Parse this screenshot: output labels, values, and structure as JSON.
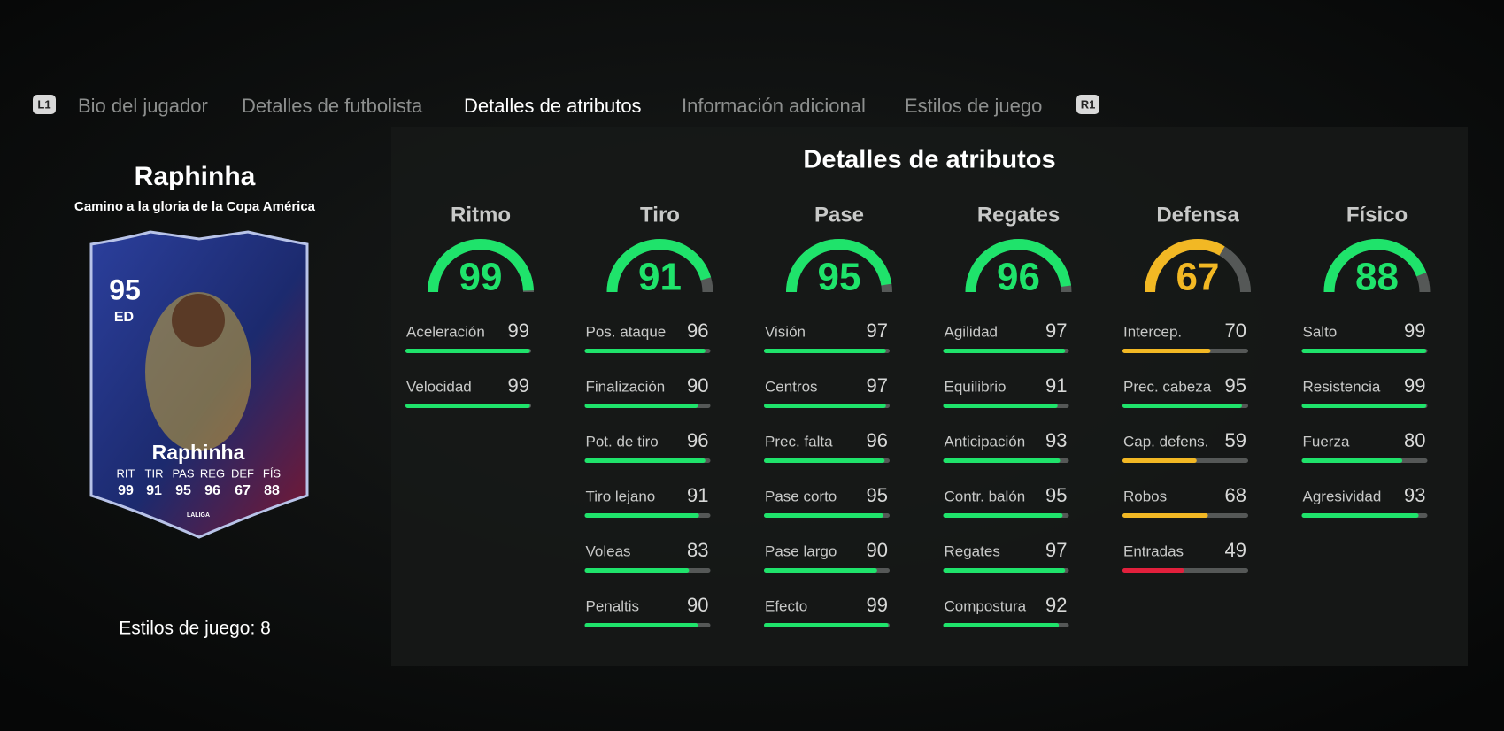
{
  "tabs": {
    "left_button": "L1",
    "right_button": "R1",
    "active": 2,
    "items": [
      "Bio del jugador",
      "Detalles de futbolista",
      "Detalles de atributos",
      "Información adicional",
      "Estilos de juego"
    ]
  },
  "player": {
    "name": "Raphinha",
    "subtitle": "Camino a la gloria de la Copa América",
    "card": {
      "rating": 95,
      "position": "ED",
      "name": "Raphinha",
      "stat_labels": [
        "RIT",
        "TIR",
        "PAS",
        "REG",
        "DEF",
        "FÍS"
      ],
      "stat_values": [
        99,
        91,
        95,
        96,
        67,
        88
      ],
      "league": "LALIGA"
    },
    "playstyles": "Estilos de juego: 8"
  },
  "attributes": {
    "title": "Detalles de atributos",
    "groups": [
      {
        "name": "Ritmo",
        "value": 99,
        "stats": [
          {
            "name": "Aceleración",
            "value": 99
          },
          {
            "name": "Velocidad",
            "value": 99
          }
        ]
      },
      {
        "name": "Tiro",
        "value": 91,
        "stats": [
          {
            "name": "Pos. ataque",
            "value": 96
          },
          {
            "name": "Finalización",
            "value": 90
          },
          {
            "name": "Pot. de tiro",
            "value": 96
          },
          {
            "name": "Tiro lejano",
            "value": 91
          },
          {
            "name": "Voleas",
            "value": 83
          },
          {
            "name": "Penaltis",
            "value": 90
          }
        ]
      },
      {
        "name": "Pase",
        "value": 95,
        "stats": [
          {
            "name": "Visión",
            "value": 97
          },
          {
            "name": "Centros",
            "value": 97
          },
          {
            "name": "Prec. falta",
            "value": 96
          },
          {
            "name": "Pase corto",
            "value": 95
          },
          {
            "name": "Pase largo",
            "value": 90
          },
          {
            "name": "Efecto",
            "value": 99
          }
        ]
      },
      {
        "name": "Regates",
        "value": 96,
        "stats": [
          {
            "name": "Agilidad",
            "value": 97
          },
          {
            "name": "Equilibrio",
            "value": 91
          },
          {
            "name": "Anticipación",
            "value": 93
          },
          {
            "name": "Contr. balón",
            "value": 95
          },
          {
            "name": "Regates",
            "value": 97
          },
          {
            "name": "Compostura",
            "value": 92
          }
        ]
      },
      {
        "name": "Defensa",
        "value": 67,
        "stats": [
          {
            "name": "Intercep.",
            "value": 70
          },
          {
            "name": "Prec. cabeza",
            "value": 95
          },
          {
            "name": "Cap. defens.",
            "value": 59
          },
          {
            "name": "Robos",
            "value": 68
          },
          {
            "name": "Entradas",
            "value": 49
          }
        ]
      },
      {
        "name": "Físico",
        "value": 88,
        "stats": [
          {
            "name": "Salto",
            "value": 99
          },
          {
            "name": "Resistencia",
            "value": 99
          },
          {
            "name": "Fuerza",
            "value": 80
          },
          {
            "name": "Agresividad",
            "value": 93
          }
        ]
      }
    ]
  }
}
